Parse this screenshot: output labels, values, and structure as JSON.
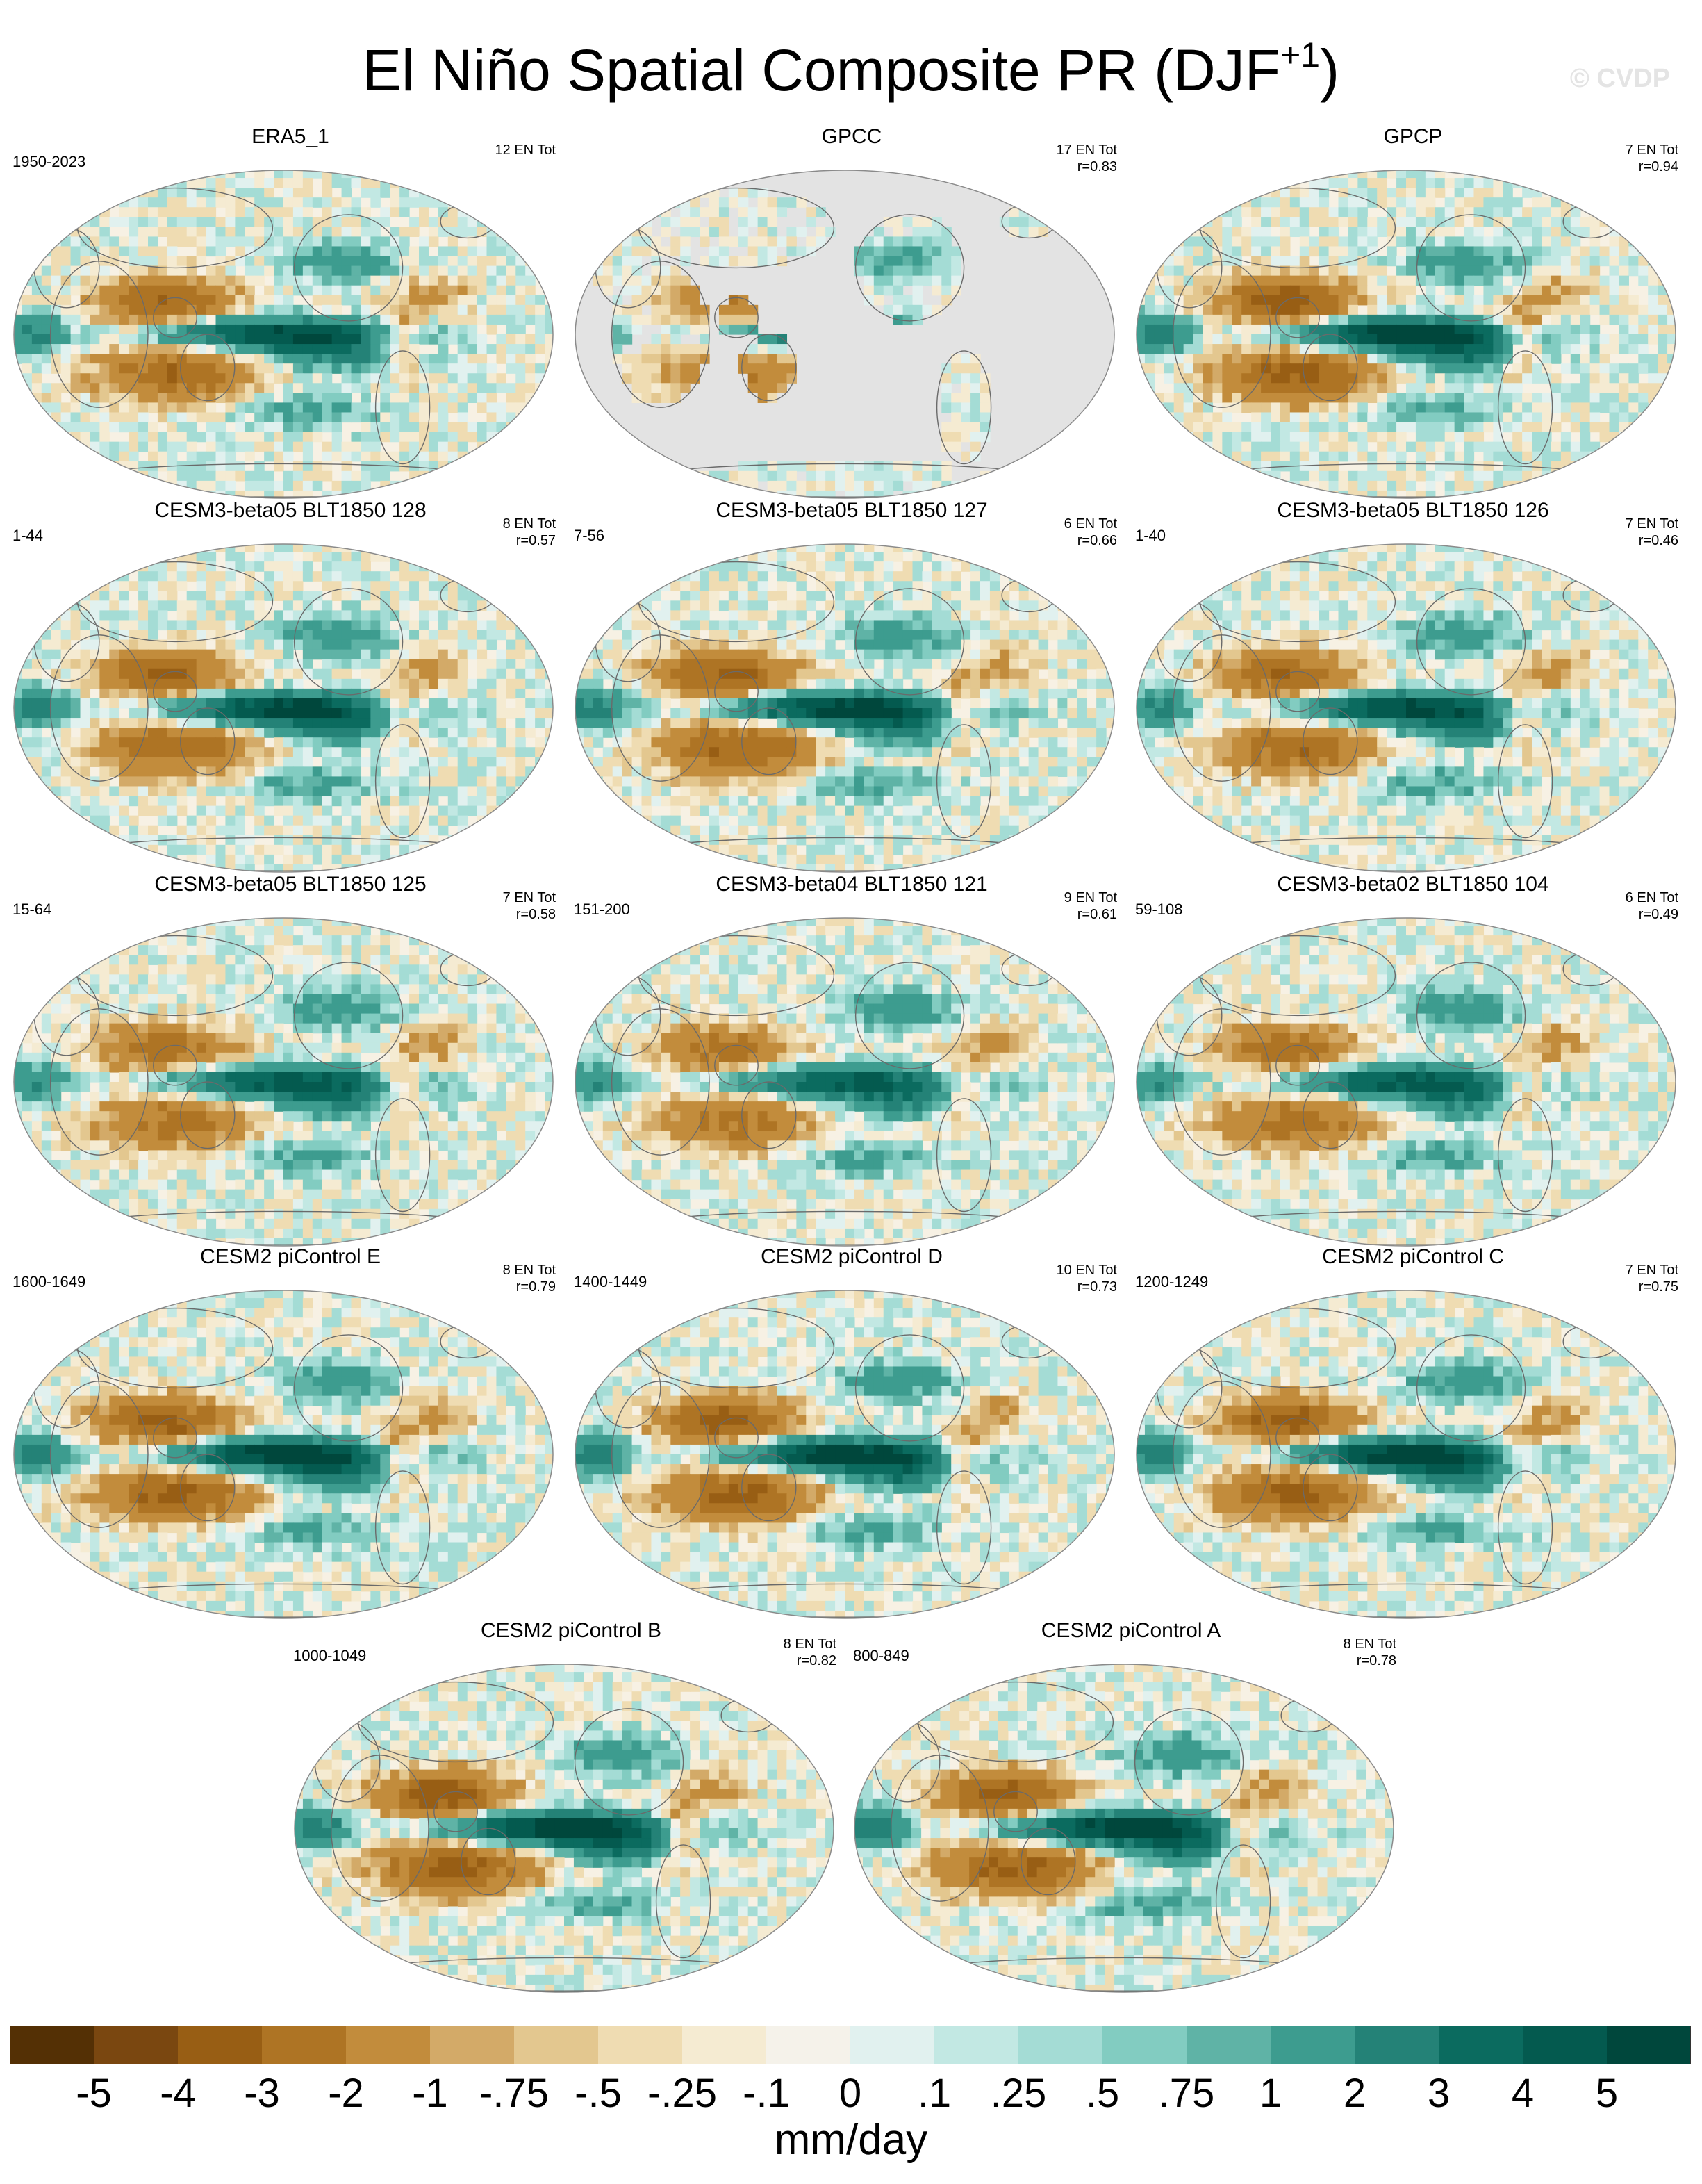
{
  "title": {
    "main": "El Niño Spatial Composite PR (DJF",
    "sup": "+1",
    "end": ")"
  },
  "credit": "© CVDP",
  "colors": {
    "palette": [
      "#543005",
      "#7a4710",
      "#985e14",
      "#ae7424",
      "#c28c3c",
      "#d3aa68",
      "#e3c78f",
      "#efdcb2",
      "#f5ebd2",
      "#f5f2ea",
      "#e1f1ef",
      "#c2e8e3",
      "#a4dcd5",
      "#82ccc1",
      "#5fb3a6",
      "#3d9c8f",
      "#248277",
      "#0b6b5f",
      "#045a4f",
      "#00473c"
    ],
    "land_masked": "#e3e3e3",
    "ocean_bg": "#f7f1e4",
    "coast": "#6a6a6a"
  },
  "chart_data": {
    "type": "heatmap",
    "title": "El Niño Spatial Composite PR (DJF+1)",
    "variable": "PR",
    "season": "DJF+1",
    "units": "mm/day",
    "colorbar_ticks": [
      "-5",
      "-4",
      "-3",
      "-2",
      "-1",
      "-.75",
      "-.5",
      "-.25",
      "-.1",
      "0",
      ".1",
      ".25",
      ".5",
      ".75",
      "1",
      "2",
      "3",
      "4",
      "5"
    ],
    "levels": [
      -5,
      -4,
      -3,
      -2,
      -1,
      -0.75,
      -0.5,
      -0.25,
      -0.1,
      0,
      0.1,
      0.25,
      0.5,
      0.75,
      1,
      2,
      3,
      4,
      5
    ],
    "panels": [
      {
        "name": "ERA5_1",
        "years": "1950-2023",
        "stats": [
          "12 EN Tot"
        ],
        "enso": 1.0,
        "seed": 3
      },
      {
        "name": "GPCC",
        "years": "",
        "stats": [
          "17 EN Tot",
          "r=0.83"
        ],
        "r": 0.83,
        "land_only": true,
        "enso": 0.9,
        "seed": 7
      },
      {
        "name": "GPCP",
        "years": "",
        "stats": [
          "7 EN Tot",
          "r=0.94"
        ],
        "r": 0.94,
        "enso": 1.15,
        "seed": 11
      },
      {
        "name": "CESM3-beta05 BLT1850 128",
        "years": "1-44",
        "stats": [
          "8 EN Tot",
          "r=0.57"
        ],
        "r": 0.57,
        "enso": 1.0,
        "seed": 13
      },
      {
        "name": "CESM3-beta05 BLT1850 127",
        "years": "7-56",
        "stats": [
          "6 EN Tot",
          "r=0.66"
        ],
        "r": 0.66,
        "enso": 1.05,
        "seed": 17
      },
      {
        "name": "CESM3-beta05 BLT1850 126",
        "years": "1-40",
        "stats": [
          "7 EN Tot",
          "r=0.46"
        ],
        "r": 0.46,
        "enso": 0.95,
        "seed": 19
      },
      {
        "name": "CESM3-beta05 BLT1850 125",
        "years": "15-64",
        "stats": [
          "7 EN Tot",
          "r=0.58"
        ],
        "r": 0.58,
        "enso": 0.85,
        "seed": 23
      },
      {
        "name": "CESM3-beta04 BLT1850 121",
        "years": "151-200",
        "stats": [
          "9 EN Tot",
          "r=0.61"
        ],
        "r": 0.61,
        "enso": 0.8,
        "seed": 29
      },
      {
        "name": "CESM3-beta02 BLT1850 104",
        "years": "59-108",
        "stats": [
          "6 EN Tot",
          "r=0.49"
        ],
        "r": 0.49,
        "enso": 0.85,
        "seed": 31
      },
      {
        "name": "CESM2 piControl E",
        "years": "1600-1649",
        "stats": [
          "8 EN Tot",
          "r=0.79"
        ],
        "r": 0.79,
        "enso": 1.1,
        "seed": 37
      },
      {
        "name": "CESM2 piControl D",
        "years": "1400-1449",
        "stats": [
          "10 EN Tot",
          "r=0.73"
        ],
        "r": 0.73,
        "enso": 1.1,
        "seed": 41
      },
      {
        "name": "CESM2 piControl C",
        "years": "1200-1249",
        "stats": [
          "7 EN Tot",
          "r=0.75"
        ],
        "r": 0.75,
        "enso": 1.1,
        "seed": 43
      },
      {
        "name": "CESM2 piControl B",
        "years": "1000-1049",
        "stats": [
          "8 EN Tot",
          "r=0.82"
        ],
        "r": 0.82,
        "enso": 1.15,
        "seed": 47
      },
      {
        "name": "CESM2 piControl A",
        "years": "800-849",
        "stats": [
          "8 EN Tot",
          "r=0.78"
        ],
        "r": 0.78,
        "enso": 1.1,
        "seed": 53
      }
    ]
  }
}
